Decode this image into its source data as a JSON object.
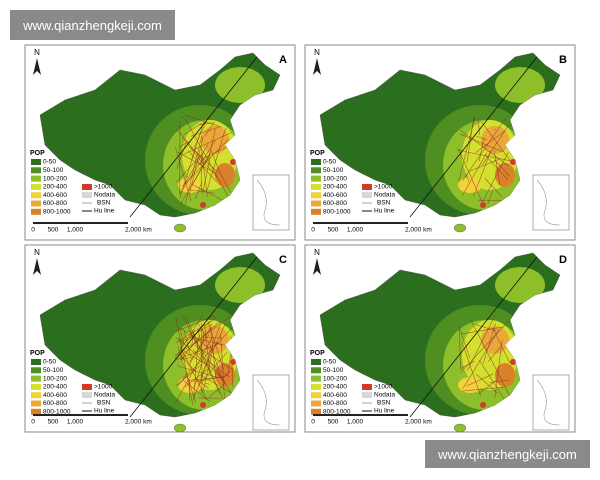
{
  "watermarks": [
    "www.qianzhengkeji.com",
    "www.qianzhengkeji.com"
  ],
  "panels": [
    "A",
    "B",
    "C",
    "D"
  ],
  "north": "N",
  "legend": {
    "title": "POP",
    "classes": [
      {
        "label": "0-50",
        "color": "#2a6e1e"
      },
      {
        "label": "50-100",
        "color": "#4f8f22"
      },
      {
        "label": "100-200",
        "color": "#8cbf2a"
      },
      {
        "label": "200-400",
        "color": "#d3e02e"
      },
      {
        "label": "400-600",
        "color": "#f0d23a"
      },
      {
        "label": "600-800",
        "color": "#e8a93a"
      },
      {
        "label": "800-1000",
        "color": "#d9822b"
      },
      {
        "label": ">1000",
        "color": "#d43a2a"
      },
      {
        "label": "Nodata",
        "color": "#d8d8d8"
      }
    ],
    "bsn": "BSN",
    "hu_line": "Hu line"
  },
  "scale": [
    "0",
    "500",
    "1,000",
    "2,000 km"
  ]
}
